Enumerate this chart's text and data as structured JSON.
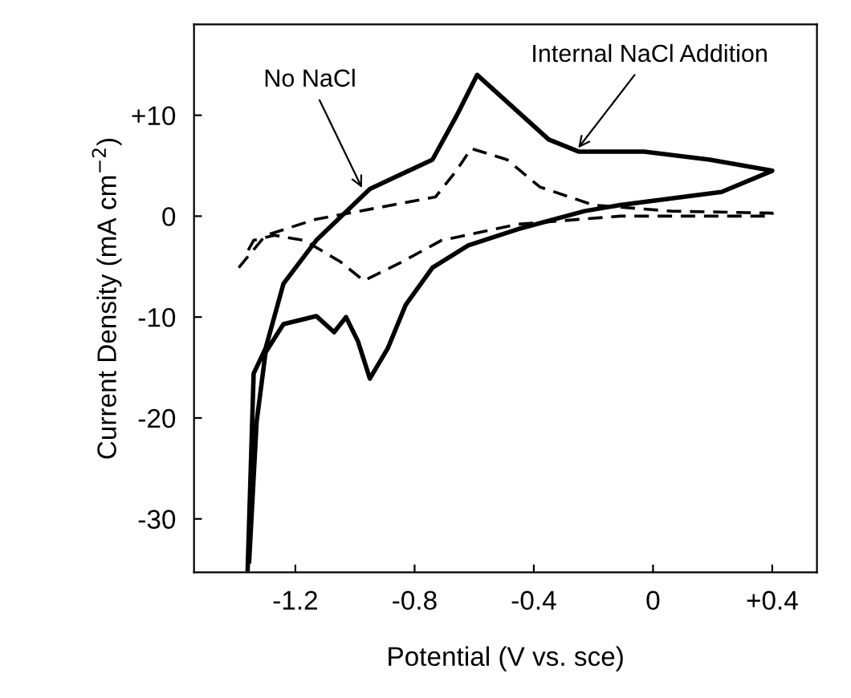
{
  "chart_data": {
    "type": "line",
    "xlabel": "Potential (V vs. sce)",
    "ylabel": "Current Density (mA cm$^{−2}$)",
    "xlim": [
      -1.54,
      0.55
    ],
    "ylim": [
      -35.3,
      19
    ],
    "xticks": [
      -1.2,
      -0.8,
      -0.4,
      0,
      {
        "value": 0.4,
        "label": "+0.4"
      }
    ],
    "yticks": [
      {
        "value": 10,
        "label": "+10"
      },
      0,
      -10,
      -20,
      -30
    ],
    "grid": false,
    "marker": "none",
    "series": [
      {
        "color": "#000000",
        "line_style": "solid",
        "x": [
          -1.36,
          -1.34,
          -1.3,
          -1.24,
          -1.13,
          -0.95,
          -0.74,
          -0.66,
          -0.59,
          -0.47,
          -0.35,
          -0.25,
          -0.03,
          0.19,
          0.4,
          0.23,
          -0.11,
          -0.23,
          -0.455,
          -0.62,
          -0.74,
          -0.83,
          -0.89,
          -0.95,
          -0.99,
          -1.03,
          -1.07,
          -1.13,
          -1.24,
          -1.3,
          -1.33,
          -1.355
        ],
        "values": [
          -35,
          -15.6,
          -13.1,
          -6.7,
          -2.4,
          2.7,
          5.6,
          9.9,
          14,
          10.8,
          7.6,
          6.4,
          6.4,
          5.6,
          4.5,
          2.4,
          1.1,
          0.5,
          -1.3,
          -2.9,
          -5.1,
          -8.8,
          -13.1,
          -16.1,
          -12.4,
          -10,
          -11.5,
          -9.9,
          -10.7,
          -13.5,
          -20.4,
          -34.2
        ]
      },
      {
        "color": "#000000",
        "line_style": "dashed",
        "x": [
          -1.39,
          -1.3,
          -1.13,
          -0.73,
          -0.66,
          -0.61,
          -0.49,
          -0.38,
          -0.2,
          0.06,
          0.4,
          0.4,
          -0.11,
          -0.455,
          -0.71,
          -0.84,
          -0.97,
          -1.05,
          -1.17,
          -1.27,
          -1.34,
          -1.37
        ],
        "values": [
          -5.1,
          -1.9,
          -0.3,
          1.9,
          4.5,
          6.7,
          5.6,
          2.9,
          1.1,
          0.5,
          0.3,
          0,
          0,
          -0.8,
          -2.4,
          -4.5,
          -6.4,
          -4.5,
          -2.4,
          -1.9,
          -2.4,
          -4
        ]
      }
    ],
    "annotations": [
      {
        "text": "No NaCl",
        "x": -0.97,
        "y": 2.4
      },
      {
        "text": "Internal NaCl Addition",
        "x": -0.26,
        "y": 6.4
      }
    ]
  }
}
